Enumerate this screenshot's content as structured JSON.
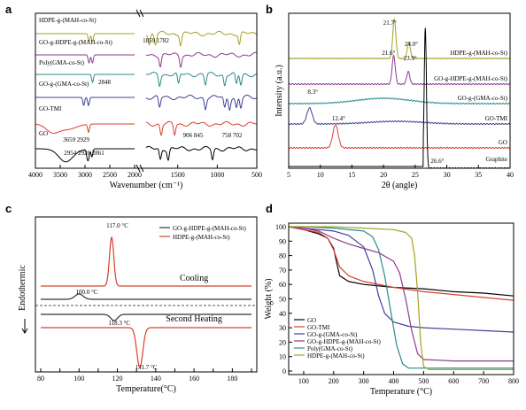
{
  "panels": {
    "a": "a",
    "b": "b",
    "c": "c",
    "d": "d"
  },
  "chart_data": [
    {
      "id": "a",
      "type": "line",
      "title": "",
      "xlabel": "Wavenumber (cm⁻¹)",
      "ylabel": "",
      "xlim": [
        4000,
        500
      ],
      "axis_break": [
        2000,
        1900
      ],
      "xticks": [
        4000,
        3500,
        3000,
        2500,
        2000,
        1500,
        1000,
        500
      ],
      "series": [
        {
          "name": "HDPE-g-(MAH-co-St)",
          "color": "#a6a123",
          "peaks": [
            2919,
            2850,
            1859,
            1782,
            1463,
            720
          ]
        },
        {
          "name": "GO-g-HDPE-g-(MAH-co-St)",
          "color": "#8e3a8e",
          "peaks": [
            2919,
            2850,
            1720,
            1463
          ]
        },
        {
          "name": "Poly(GMA-co-St)",
          "color": "#2a8b8b",
          "peaks": [
            2848,
            1730,
            1490,
            1150,
            906,
            758,
            702
          ]
        },
        {
          "name": "GO-g-(GMA-co-St)",
          "color": "#40409a",
          "peaks": [
            3026,
            2929,
            1730,
            1150,
            906,
            845,
            758,
            702
          ]
        },
        {
          "name": "GO-TMI",
          "color": "#d9402a",
          "peaks": [
            3659,
            2929,
            1710,
            1540
          ]
        },
        {
          "name": "GO",
          "color": "#000000",
          "peaks": [
            3400,
            2954,
            2926,
            2861,
            1720,
            1620,
            1060
          ]
        }
      ],
      "annotations": [
        "1859 1782",
        "2848",
        "3659 2929",
        "906 845",
        "758 702",
        "2954 2926 2861"
      ]
    },
    {
      "id": "b",
      "type": "line",
      "title": "",
      "xlabel": "2θ (angle)",
      "ylabel": "Intensity (a.u.)",
      "xlim": [
        5,
        40
      ],
      "xticks": [
        5,
        10,
        15,
        20,
        25,
        30,
        35,
        40
      ],
      "series": [
        {
          "name": "HDPE-g-(MAH-co-St)",
          "color": "#a6a123",
          "peaks": [
            21.7,
            24.0
          ]
        },
        {
          "name": "GO-g-HDPE-g-(MAH-co-St)",
          "color": "#8e3a8e",
          "peaks": [
            21.6,
            23.9
          ]
        },
        {
          "name": "GO-g-(GMA-co-St)",
          "color": "#2a8b8b",
          "peaks": []
        },
        {
          "name": "GO-TMI",
          "color": "#40409a",
          "peaks": [
            8.3
          ]
        },
        {
          "name": "GO",
          "color": "#d9402a",
          "peaks": [
            12.4
          ]
        },
        {
          "name": "Graphite",
          "color": "#000000",
          "peaks": [
            26.6
          ]
        }
      ],
      "annotations": [
        "21.7°",
        "24.0°",
        "21.6°",
        "23.9°",
        "8.3°",
        "12.4°",
        "26.6°"
      ]
    },
    {
      "id": "c",
      "type": "line",
      "title": "",
      "xlabel": "Temperature(°C)",
      "ylabel": "Endothermic",
      "xlim": [
        80,
        190
      ],
      "xticks": [
        80,
        90,
        100,
        110,
        120,
        130,
        140,
        150,
        160,
        170,
        180,
        190
      ],
      "series": [
        {
          "name": "GO-g-HDPE-g-(MAH-co-St)",
          "color": "#333333",
          "cooling_peak": 100.0,
          "heating_peak": 118.3
        },
        {
          "name": "HDPE-g-(MAH-co-St)",
          "color": "#d9402a",
          "cooling_peak": 117.0,
          "heating_peak": 131.7
        }
      ],
      "annotations": [
        "117.0 °C",
        "100.0 °C",
        "118.3 °C",
        "131.7 °C",
        "Cooling",
        "Second Heating"
      ]
    },
    {
      "id": "d",
      "type": "line",
      "title": "",
      "xlabel": "Temperature (°C)",
      "ylabel": "Weight (%)",
      "xlim": [
        50,
        800
      ],
      "ylim": [
        0,
        100
      ],
      "xticks": [
        100,
        200,
        300,
        400,
        500,
        600,
        700,
        800
      ],
      "yticks": [
        0,
        10,
        20,
        30,
        40,
        50,
        60,
        70,
        80,
        90,
        100
      ],
      "legend_position": "bottom-left",
      "series": [
        {
          "name": "GO",
          "color": "#000000",
          "x": [
            50,
            100,
            150,
            180,
            200,
            210,
            220,
            250,
            300,
            400,
            500,
            600,
            700,
            800
          ],
          "y": [
            100,
            98,
            95,
            92,
            85,
            75,
            66,
            62,
            60,
            58,
            57,
            55,
            54,
            52
          ]
        },
        {
          "name": "GO-TMI",
          "color": "#d9402a",
          "x": [
            50,
            100,
            150,
            180,
            200,
            220,
            250,
            300,
            400,
            500,
            600,
            700,
            800
          ],
          "y": [
            100,
            98,
            96,
            92,
            84,
            72,
            66,
            62,
            58,
            55,
            53,
            51,
            49
          ]
        },
        {
          "name": "GO-g-(GMA-co-St)",
          "color": "#40409a",
          "x": [
            50,
            100,
            150,
            200,
            250,
            300,
            330,
            350,
            370,
            400,
            450,
            500,
            600,
            700,
            800
          ],
          "y": [
            100,
            99,
            98,
            97,
            94,
            86,
            70,
            52,
            40,
            34,
            31,
            30,
            29,
            28,
            27
          ]
        },
        {
          "name": "GO-g-HDPE-g-(MAH-co-St)",
          "color": "#8e3a8e",
          "x": [
            50,
            100,
            150,
            200,
            250,
            300,
            350,
            400,
            420,
            440,
            460,
            480,
            500,
            600,
            700,
            800
          ],
          "y": [
            100,
            99,
            97,
            92,
            88,
            85,
            82,
            76,
            68,
            50,
            28,
            12,
            8,
            7,
            7,
            7
          ]
        },
        {
          "name": "Poly(GMA-co-St)",
          "color": "#2a8b8b",
          "x": [
            50,
            100,
            200,
            300,
            330,
            350,
            370,
            390,
            410,
            430,
            450,
            500,
            600,
            700,
            800
          ],
          "y": [
            100,
            100,
            99,
            97,
            93,
            84,
            66,
            42,
            18,
            5,
            2,
            2,
            2,
            2,
            2
          ]
        },
        {
          "name": "HDPE-g-(MAH-co-St)",
          "color": "#a6a123",
          "x": [
            50,
            100,
            200,
            300,
            400,
            440,
            460,
            470,
            480,
            490,
            500,
            520,
            600,
            700,
            800
          ],
          "y": [
            100,
            100,
            100,
            99,
            98,
            96,
            92,
            80,
            55,
            20,
            3,
            1,
            1,
            1,
            1
          ]
        }
      ]
    }
  ]
}
